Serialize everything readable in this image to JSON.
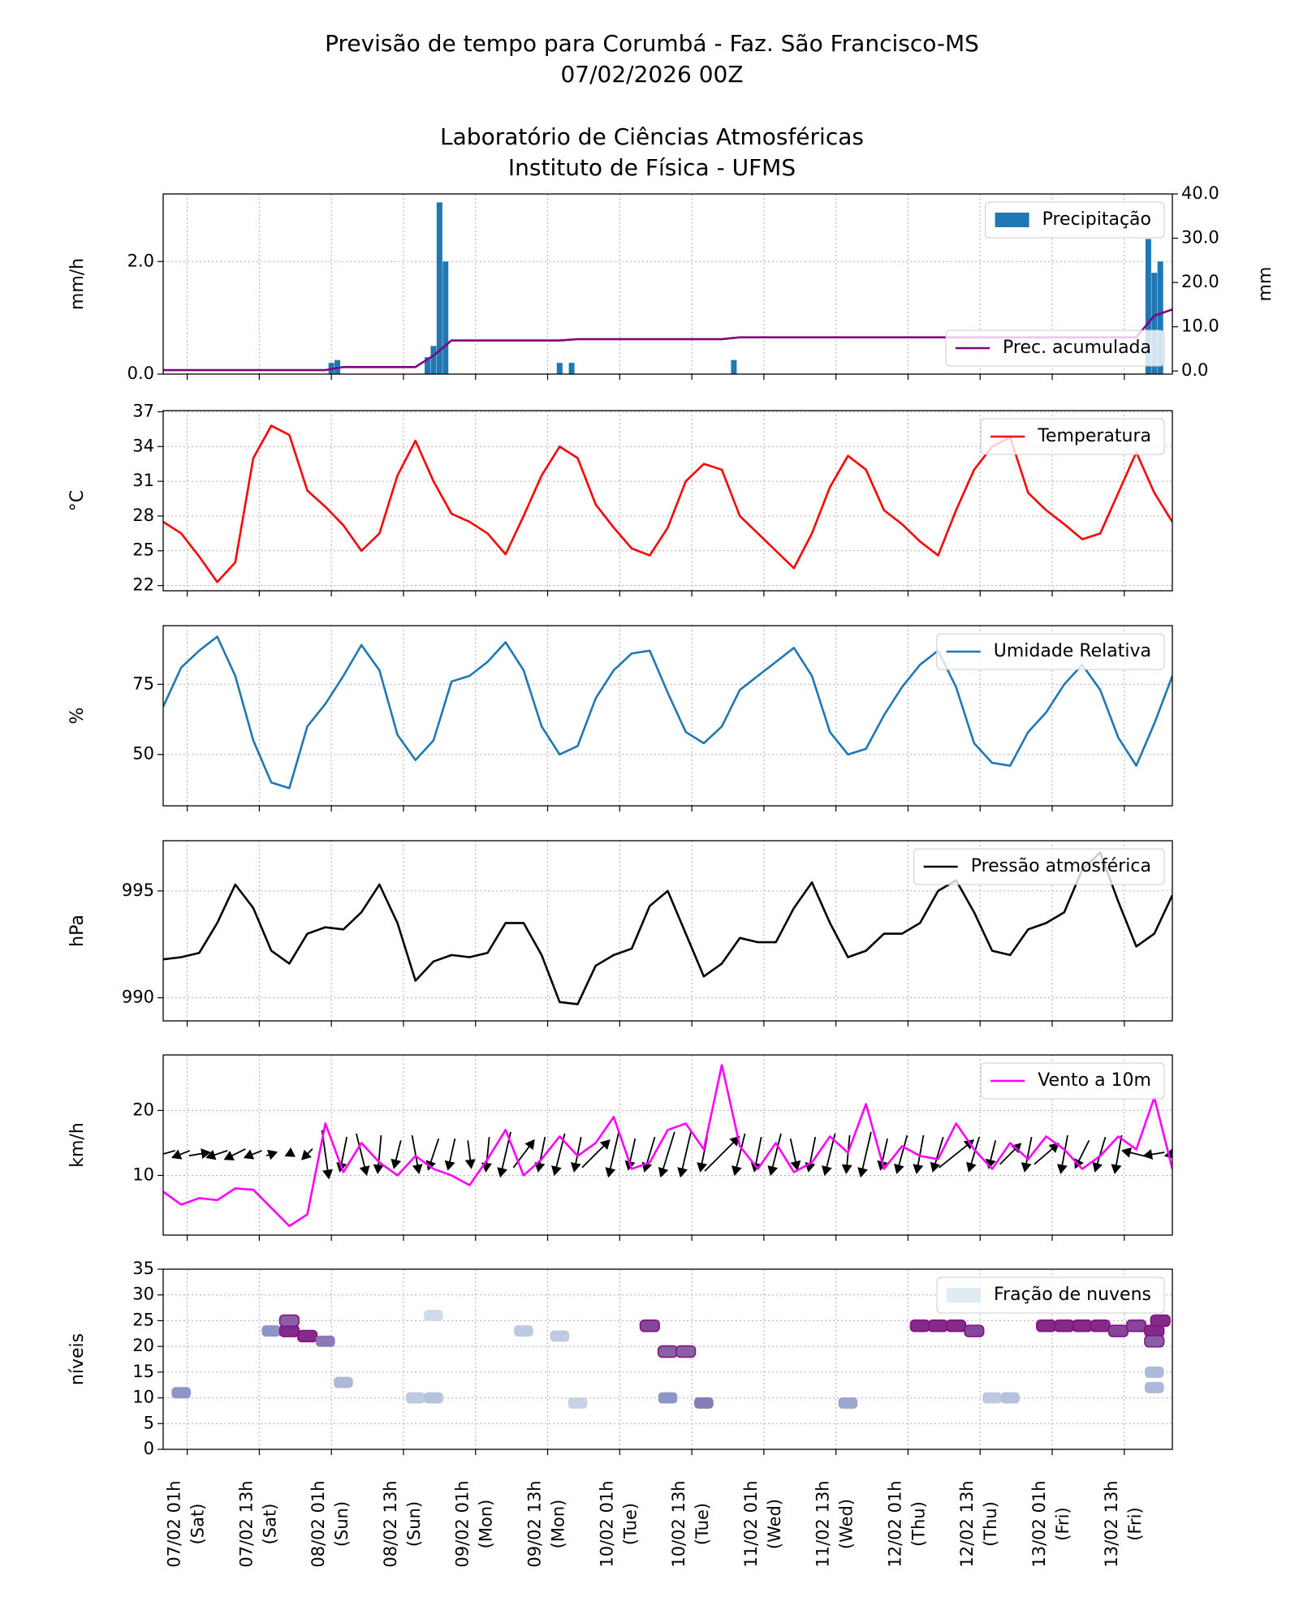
{
  "titles": [
    "Previsão de tempo para Corumbá - Faz. São Francisco-MS",
    "07/02/2026 00Z",
    "Laboratório de Ciências Atmosféricas",
    "Instituto de Física - UFMS"
  ],
  "time_axis": {
    "x": [
      0,
      3,
      6,
      9,
      12,
      15,
      18,
      21,
      24,
      27,
      30,
      33,
      36,
      39,
      42,
      45,
      48,
      51,
      54,
      57,
      60,
      63,
      66,
      69,
      72,
      75,
      78,
      81,
      84,
      87,
      90,
      93,
      96,
      99,
      102,
      105,
      108,
      111,
      114,
      117,
      120,
      123,
      126,
      129,
      132,
      135,
      138,
      141,
      144,
      147,
      150,
      153,
      156,
      159,
      162,
      165,
      168
    ],
    "xlim": [
      0,
      168
    ],
    "xticks": [
      {
        "value": 4,
        "label": "07/02 01h\n(Sat)"
      },
      {
        "value": 16,
        "label": "07/02 13h\n(Sat)"
      },
      {
        "value": 28,
        "label": "08/02 01h\n(Sun)"
      },
      {
        "value": 40,
        "label": "08/02 13h\n(Sun)"
      },
      {
        "value": 52,
        "label": "09/02 01h\n(Mon)"
      },
      {
        "value": 64,
        "label": "09/02 13h\n(Mon)"
      },
      {
        "value": 76,
        "label": "10/02 01h\n(Tue)"
      },
      {
        "value": 88,
        "label": "10/02 13h\n(Tue)"
      },
      {
        "value": 100,
        "label": "11/02 01h\n(Wed)"
      },
      {
        "value": 112,
        "label": "11/02 13h\n(Wed)"
      },
      {
        "value": 124,
        "label": "12/02 01h\n(Thu)"
      },
      {
        "value": 136,
        "label": "12/02 13h\n(Thu)"
      },
      {
        "value": 148,
        "label": "13/02 01h\n(Fri)"
      },
      {
        "value": 160,
        "label": "13/02 13h\n(Fri)"
      }
    ]
  },
  "chart_data": [
    {
      "type": "combo",
      "ylabel": "mm/h",
      "y2label": "mm",
      "grid": true,
      "ylim": [
        0,
        3.2
      ],
      "yticks": [
        {
          "value": 0,
          "label": "0.0"
        },
        {
          "value": 2,
          "label": "2.0"
        }
      ],
      "y2lim": [
        -0.7,
        40
      ],
      "y2ticks": [
        {
          "value": 0,
          "label": "0.0"
        },
        {
          "value": 10,
          "label": "10.0"
        },
        {
          "value": 20,
          "label": "20.0"
        },
        {
          "value": 30,
          "label": "30.0"
        },
        {
          "value": 40,
          "label": "40.0"
        }
      ],
      "series": [
        {
          "name": "Precipitação",
          "type": "bar",
          "color": "#1f77b4",
          "legend": "upper right",
          "x": [
            28,
            29,
            44,
            45,
            46,
            47,
            66,
            68,
            95,
            164,
            165,
            166
          ],
          "values": [
            0.2,
            0.25,
            0.3,
            0.5,
            3.05,
            2.0,
            0.2,
            0.2,
            0.25,
            2.4,
            1.8,
            2.0
          ]
        },
        {
          "name": "Prec. acumulada",
          "type": "line",
          "color": "#800080",
          "axis": "y2",
          "legend": "lower right",
          "values": [
            0.2,
            0.2,
            0.2,
            0.2,
            0.2,
            0.2,
            0.2,
            0.2,
            0.2,
            0.2,
            0.9,
            0.9,
            0.9,
            0.9,
            0.9,
            3.5,
            6.9,
            6.9,
            6.9,
            6.9,
            6.9,
            6.9,
            6.9,
            7.2,
            7.2,
            7.2,
            7.2,
            7.2,
            7.2,
            7.2,
            7.2,
            7.2,
            7.6,
            7.6,
            7.6,
            7.6,
            7.6,
            7.6,
            7.6,
            7.6,
            7.6,
            7.6,
            7.6,
            7.6,
            7.6,
            7.6,
            7.6,
            7.6,
            7.6,
            7.6,
            7.6,
            7.6,
            7.6,
            7.6,
            7.6,
            12.5,
            13.9
          ]
        }
      ]
    },
    {
      "type": "line",
      "ylabel": "°C",
      "grid": true,
      "ylim": [
        21.55,
        37.1
      ],
      "yticks": [
        22,
        25,
        28,
        31,
        34,
        37
      ],
      "series": [
        {
          "name": "Temperatura",
          "type": "line",
          "color": "#ff0000",
          "legend": "upper right",
          "values": [
            27.5,
            26.5,
            24.5,
            22.3,
            24,
            33,
            35.8,
            35,
            30.2,
            28.8,
            27.2,
            25,
            26.5,
            31.5,
            34.5,
            31,
            28.2,
            27.5,
            26.5,
            24.7,
            28,
            31.5,
            34,
            33,
            29,
            27,
            25.2,
            24.6,
            27,
            31,
            32.5,
            32,
            28,
            26.5,
            25,
            23.5,
            26.5,
            30.5,
            33.2,
            32,
            28.5,
            27.3,
            25.8,
            24.6,
            28.5,
            32,
            34,
            34.8,
            30,
            28.5,
            27.3,
            26,
            26.5,
            30,
            33.5,
            30,
            27.5
          ]
        }
      ]
    },
    {
      "type": "line",
      "ylabel": "%",
      "grid": true,
      "ylim": [
        31.7,
        95.9
      ],
      "yticks": [
        50,
        75
      ],
      "series": [
        {
          "name": "Umidade Relativa",
          "type": "line",
          "color": "#1f77b4",
          "legend": "upper right",
          "values": [
            67,
            81,
            87,
            92,
            78,
            55,
            40,
            38,
            60,
            68,
            78,
            89,
            80,
            57,
            48,
            55,
            76,
            78,
            83,
            90,
            80,
            60,
            50,
            53,
            70,
            80,
            86,
            87,
            72,
            58,
            54,
            60,
            73,
            78,
            83,
            88,
            78,
            58,
            50,
            52,
            64,
            74,
            82,
            87,
            74,
            54,
            47,
            46,
            58,
            65,
            75,
            82,
            73,
            56,
            46,
            61,
            78
          ]
        }
      ]
    },
    {
      "type": "line",
      "ylabel": "hPa",
      "grid": true,
      "ylim": [
        988.92,
        997.35
      ],
      "yticks": [
        990,
        995
      ],
      "series": [
        {
          "name": "Pressão atmosférica",
          "type": "line",
          "color": "#000000",
          "legend": "upper right",
          "values": [
            991.8,
            991.9,
            992.1,
            993.5,
            995.3,
            994.2,
            992.2,
            991.6,
            993.0,
            993.3,
            993.2,
            994.0,
            995.3,
            993.5,
            990.8,
            991.7,
            992.0,
            991.9,
            992.1,
            993.5,
            993.5,
            992.0,
            989.8,
            989.7,
            991.5,
            992.0,
            992.3,
            994.3,
            995.0,
            993.0,
            991.0,
            991.6,
            992.8,
            992.6,
            992.6,
            994.2,
            995.4,
            993.5,
            991.9,
            992.2,
            993.0,
            993.0,
            993.5,
            995.0,
            995.5,
            994.0,
            992.2,
            992.0,
            993.2,
            993.5,
            994.0,
            996.0,
            996.8,
            994.5,
            992.4,
            993.0,
            994.8
          ]
        }
      ]
    },
    {
      "type": "line",
      "ylabel": "km/h",
      "grid": true,
      "ylim": [
        0.81,
        28.55
      ],
      "yticks": [
        10,
        20
      ],
      "series": [
        {
          "name": "Vento a 10m",
          "type": "line",
          "color": "#ff00ff",
          "legend": "upper right",
          "values": [
            7.5,
            5.5,
            6.5,
            6.2,
            8,
            7.8,
            5,
            2.2,
            4,
            18,
            10.5,
            15,
            12,
            10,
            13,
            11,
            10,
            8.5,
            12.5,
            17,
            10,
            12.5,
            16,
            13,
            15,
            19,
            11,
            12,
            17,
            18,
            14,
            27,
            14.5,
            11,
            15,
            10.5,
            12,
            16,
            13.5,
            21,
            11,
            14.5,
            13,
            12.5,
            18,
            14,
            11,
            15,
            12.5,
            16,
            14,
            11,
            13,
            16,
            14,
            22,
            11
          ]
        }
      ],
      "quiver": {
        "color": "#000000",
        "u": [
          -7,
          -5,
          6,
          -6,
          -6,
          -5,
          3,
          -2,
          -3,
          2,
          -2,
          3,
          -1,
          -2,
          2,
          -3,
          -2,
          1,
          -1,
          -3,
          6,
          -2,
          -3,
          -2,
          8,
          -3,
          -2,
          -3,
          -4,
          -3,
          -2,
          10,
          -3,
          -2,
          -3,
          2,
          -2,
          -3,
          -1,
          -3,
          -2,
          -3,
          -2,
          -3,
          10,
          -3,
          -2,
          6,
          -2,
          7,
          -2,
          -4,
          -3,
          -2,
          -8,
          -6,
          -4
        ],
        "v": [
          -2,
          -2,
          1,
          -2,
          -3,
          -2,
          1,
          -1,
          -3,
          -14,
          -10,
          -12,
          -11,
          -8,
          -11,
          -9,
          -9,
          -8,
          -10,
          -13,
          8,
          -10,
          -12,
          -10,
          8,
          -13,
          -9,
          -10,
          -13,
          -13,
          -10,
          10,
          -12,
          -10,
          -12,
          -9,
          -10,
          -12,
          -11,
          -13,
          -9,
          -11,
          -11,
          -10,
          8,
          -10,
          -8,
          6,
          -10,
          6,
          -11,
          -8,
          -10,
          -11,
          2,
          -1,
          -1
        ]
      }
    },
    {
      "type": "heatmap",
      "ylabel": "níveis",
      "grid": true,
      "ylim": [
        0,
        35
      ],
      "yticks": [
        0,
        5,
        10,
        15,
        20,
        25,
        30,
        35
      ],
      "name": "Fração de nuvens",
      "legend": "upper right",
      "colors": [
        "#e0ecf4",
        "#8c96c6",
        "#810f7c"
      ],
      "x": [
        3,
        18,
        21,
        24,
        21,
        27,
        30,
        42,
        45,
        45,
        60,
        66,
        69,
        81,
        84,
        84,
        87,
        90,
        114,
        126,
        129,
        132,
        135,
        138,
        141,
        147,
        150,
        153,
        156,
        159,
        162,
        165,
        165,
        166,
        165,
        165
      ],
      "y": [
        11,
        23,
        23,
        22,
        25,
        21,
        13,
        10,
        10,
        26,
        23,
        22,
        9,
        24,
        10,
        19,
        19,
        9,
        9,
        24,
        24,
        24,
        23,
        10,
        10,
        24,
        24,
        24,
        24,
        23,
        24,
        23,
        21,
        25,
        15,
        12
      ],
      "values": [
        0.5,
        0.5,
        0.9,
        0.9,
        0.7,
        0.6,
        0.3,
        0.2,
        0.25,
        0.1,
        0.2,
        0.2,
        0.15,
        0.8,
        0.5,
        0.7,
        0.7,
        0.6,
        0.4,
        0.9,
        0.9,
        0.9,
        0.8,
        0.2,
        0.25,
        0.9,
        0.9,
        0.9,
        0.9,
        0.8,
        0.8,
        0.9,
        0.7,
        0.9,
        0.3,
        0.3
      ]
    }
  ]
}
